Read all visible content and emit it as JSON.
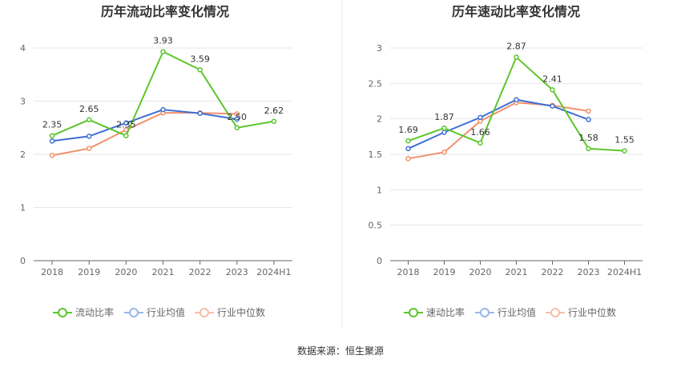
{
  "source_text": "数据来源：恒生聚源",
  "colors": {
    "primary": "#5cc62c",
    "industry_avg": "#3e6fd6",
    "industry_median": "#f0916c",
    "grid": "#e6e6e6",
    "axis": "#666666"
  },
  "chart_data": [
    {
      "type": "line",
      "title": "历年流动比率变化情况",
      "categories": [
        "2018",
        "2019",
        "2020",
        "2021",
        "2022",
        "2023",
        "2024H1"
      ],
      "ylim": [
        0,
        4
      ],
      "yticks": [
        "0",
        "1",
        "2",
        "3",
        "4"
      ],
      "grid": true,
      "legend_position": "bottom",
      "series": [
        {
          "name": "流动比率",
          "values": [
            2.35,
            2.65,
            2.35,
            3.93,
            3.59,
            2.5,
            2.62
          ],
          "labels": [
            "2.35",
            "2.65",
            "2.35",
            "3.93",
            "3.59",
            "2.50",
            "2.62"
          ]
        },
        {
          "name": "行业均值",
          "values": [
            2.25,
            2.34,
            2.59,
            2.84,
            2.77,
            2.66,
            null
          ]
        },
        {
          "name": "行业中位数",
          "values": [
            1.98,
            2.11,
            2.46,
            2.78,
            2.78,
            2.76,
            null
          ]
        }
      ]
    },
    {
      "type": "line",
      "title": "历年速动比率变化情况",
      "categories": [
        "2018",
        "2019",
        "2020",
        "2021",
        "2022",
        "2023",
        "2024H1"
      ],
      "ylim": [
        0,
        3
      ],
      "yticks": [
        "0",
        "0.5",
        "1",
        "1.5",
        "2",
        "2.5",
        "3"
      ],
      "grid": true,
      "legend_position": "bottom",
      "series": [
        {
          "name": "速动比率",
          "values": [
            1.69,
            1.87,
            1.66,
            2.87,
            2.41,
            1.58,
            1.55
          ],
          "labels": [
            "1.69",
            "1.87",
            "1.66",
            "2.87",
            "2.41",
            "1.58",
            "1.55"
          ]
        },
        {
          "name": "行业均值",
          "values": [
            1.58,
            1.81,
            2.02,
            2.27,
            2.18,
            1.99,
            null
          ]
        },
        {
          "name": "行业中位数",
          "values": [
            1.44,
            1.53,
            1.97,
            2.23,
            2.19,
            2.11,
            null
          ]
        }
      ]
    }
  ]
}
